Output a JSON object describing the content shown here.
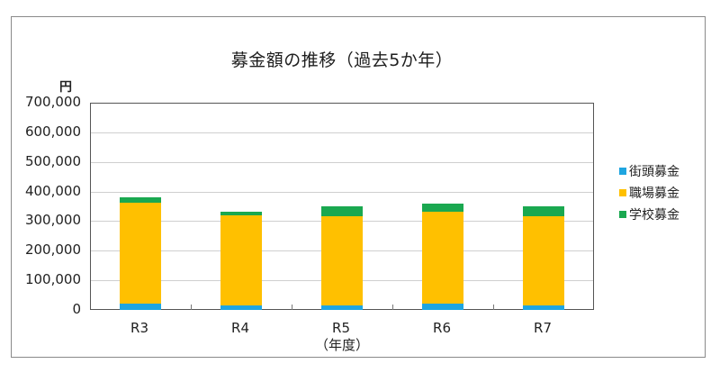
{
  "chart_data": {
    "type": "bar",
    "stacked": true,
    "title": "募金額の推移（過去5か年）",
    "xlabel": "（年度）",
    "ylabel": "円",
    "ylim": [
      0,
      700000
    ],
    "yticks": [
      "0",
      "100,000",
      "200,000",
      "300,000",
      "400,000",
      "500,000",
      "600,000",
      "700,000"
    ],
    "grid": true,
    "legend_position": "right",
    "categories": [
      "R3",
      "R4",
      "R5",
      "R6",
      "R7"
    ],
    "series": [
      {
        "name": "街頭募金",
        "color": "#1fa5e0",
        "values": [
          21000,
          13000,
          15000,
          20000,
          13000
        ]
      },
      {
        "name": "職場募金",
        "color": "#ffc000",
        "values": [
          341000,
          305000,
          301000,
          311000,
          301000
        ]
      },
      {
        "name": "学校募金",
        "color": "#1aa850",
        "values": [
          18000,
          13000,
          33000,
          28000,
          34000
        ]
      }
    ]
  }
}
